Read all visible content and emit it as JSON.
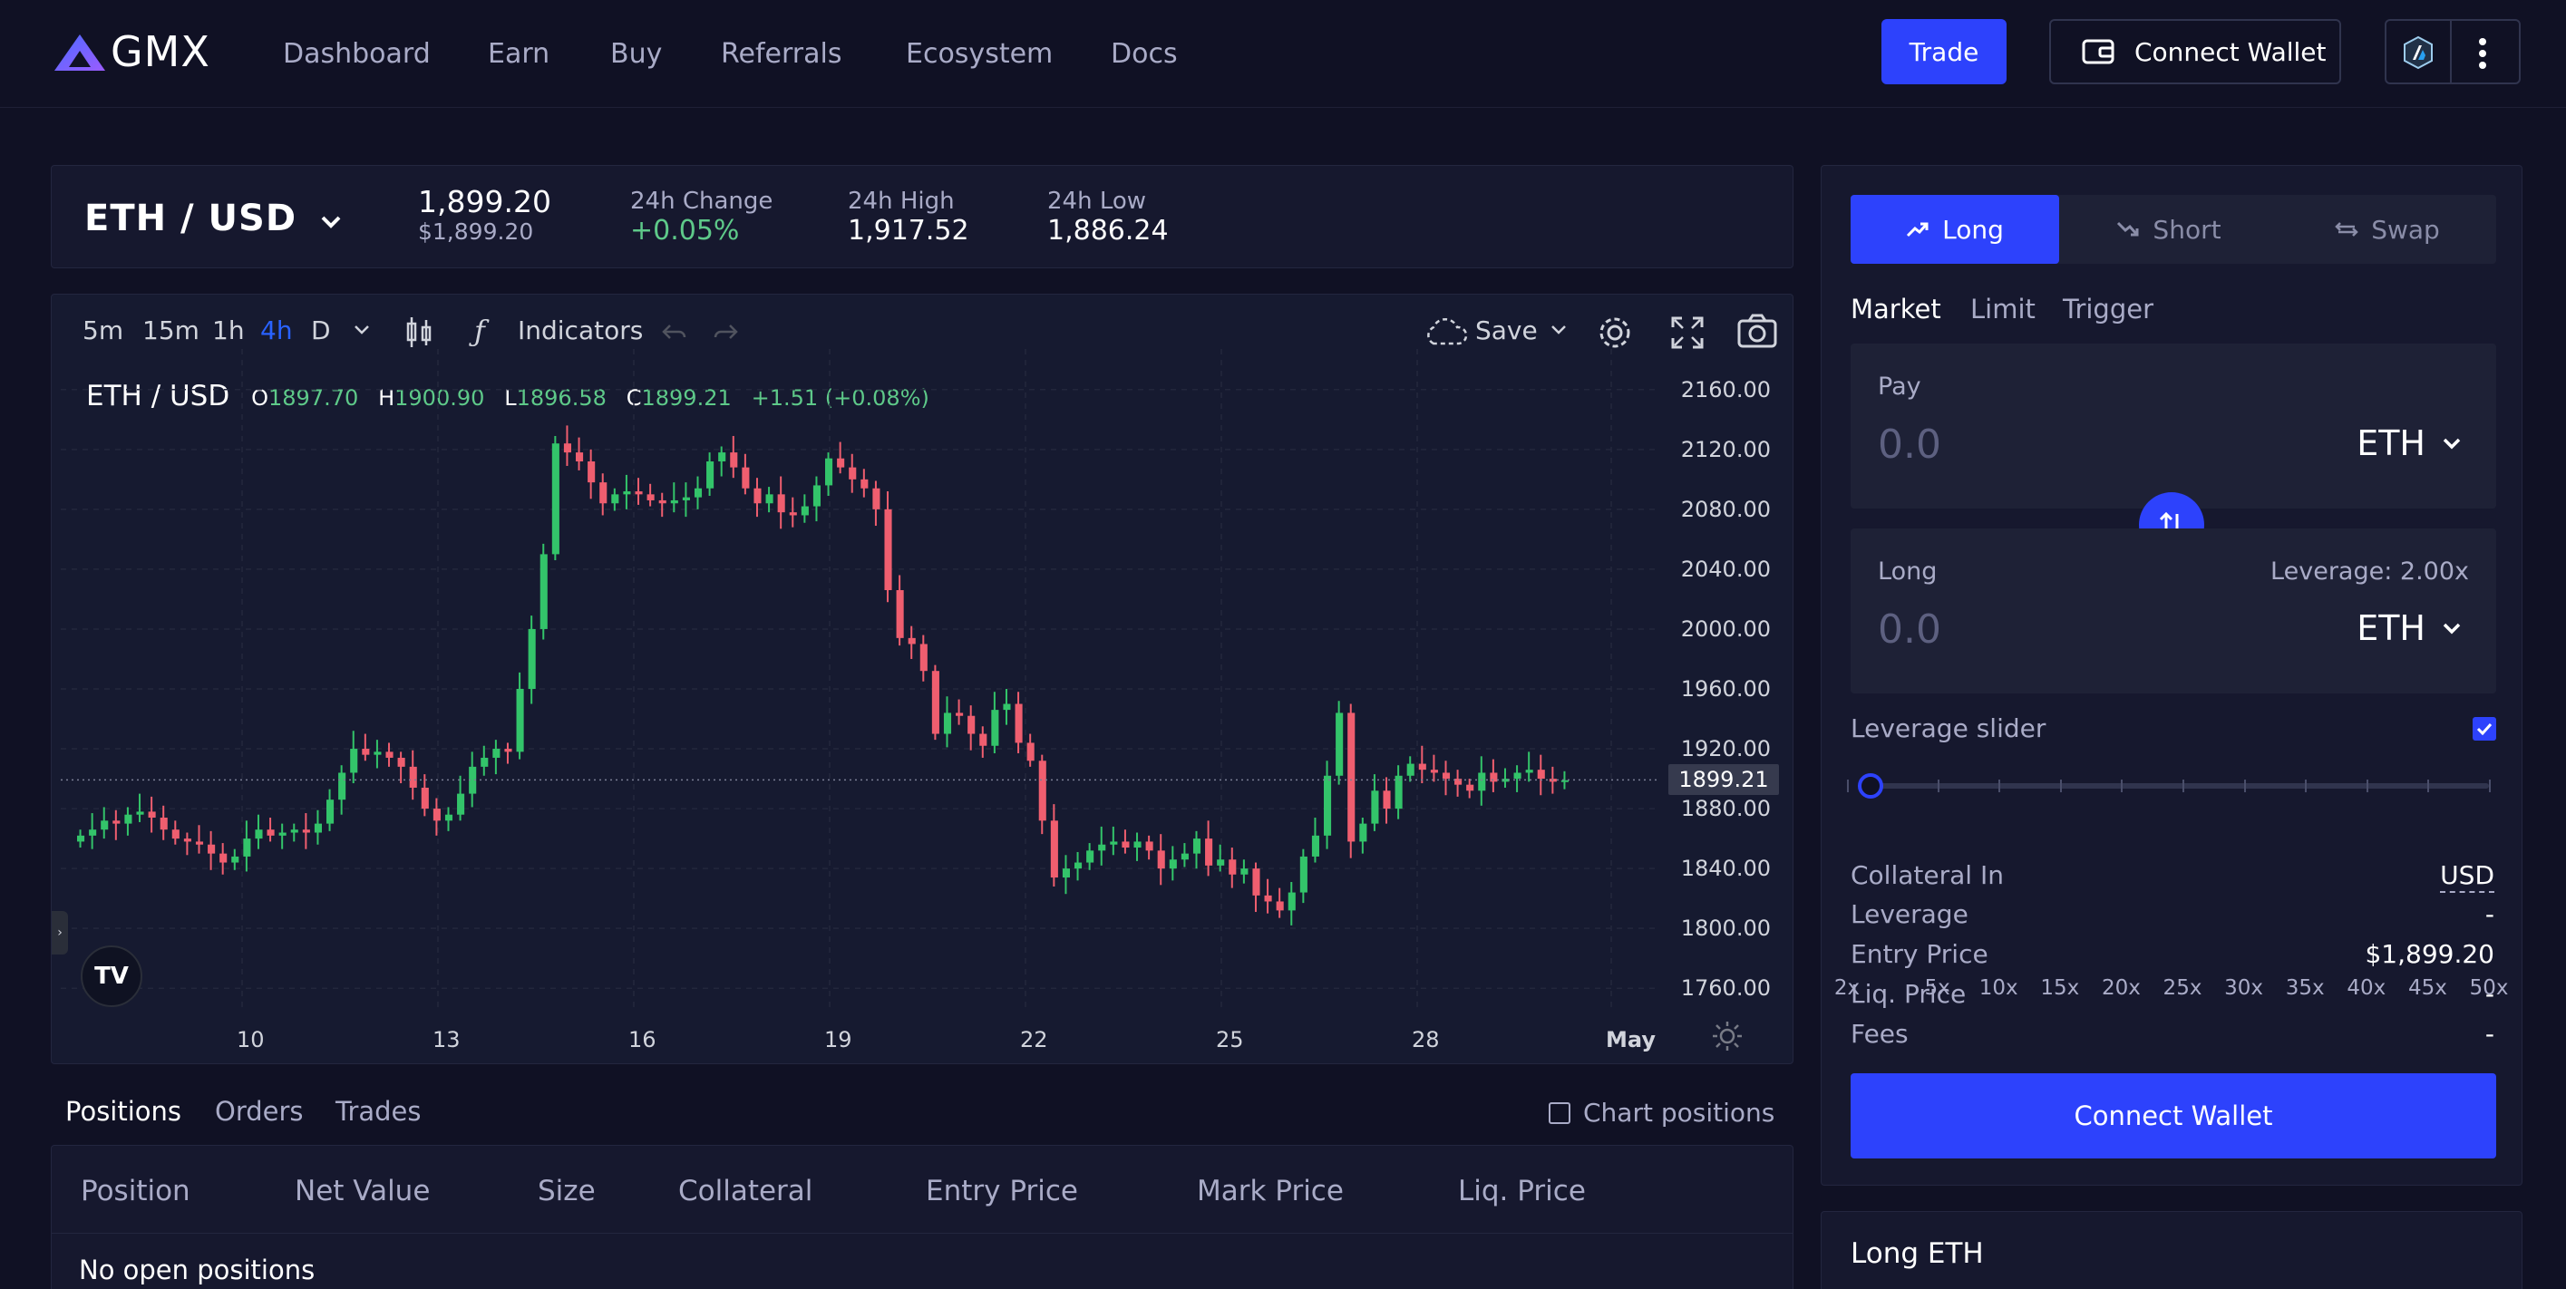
{
  "header": {
    "logo_text": "GMX",
    "nav": [
      "Dashboard",
      "Earn",
      "Buy",
      "Referrals",
      "Ecosystem",
      "Docs"
    ],
    "trade_label": "Trade",
    "connect_wallet_label": "Connect Wallet"
  },
  "ticker": {
    "pair": "ETH / USD",
    "price": "1,899.20",
    "price_usd": "$1,899.20",
    "change_label": "24h Change",
    "change_value": "+0.05%",
    "high_label": "24h High",
    "high_value": "1,917.52",
    "low_label": "24h Low",
    "low_value": "1,886.24"
  },
  "chart_toolbar": {
    "intervals": [
      "5m",
      "15m",
      "1h",
      "4h",
      "D"
    ],
    "active_interval": "4h",
    "indicators_label": "Indicators",
    "save_label": "Save"
  },
  "chart_legend": {
    "symbol": "ETH / USD",
    "o_label": "O",
    "o_value": "1897.70",
    "h_label": "H",
    "h_value": "1900.90",
    "l_label": "L",
    "l_value": "1896.58",
    "c_label": "C",
    "c_value": "1899.21",
    "change": "+1.51 (+0.08%)"
  },
  "chart_data": {
    "type": "candlestick",
    "symbol": "ETH / USD",
    "y_ticks": [
      "2160.00",
      "2120.00",
      "2080.00",
      "2040.00",
      "2000.00",
      "1960.00",
      "1920.00",
      "1880.00",
      "1840.00",
      "1800.00",
      "1760.00"
    ],
    "ylim": [
      1745,
      2175
    ],
    "x_ticks": [
      "10",
      "13",
      "16",
      "19",
      "22",
      "25",
      "28",
      "May"
    ],
    "last_price": "1899.21",
    "colors": {
      "up": "#26a69a",
      "up_bright": "#33c46a",
      "down": "#ef5e6f"
    },
    "close_series": [
      1862,
      1866,
      1872,
      1870,
      1876,
      1878,
      1874,
      1866,
      1860,
      1858,
      1856,
      1850,
      1844,
      1848,
      1860,
      1866,
      1862,
      1864,
      1866,
      1864,
      1870,
      1886,
      1904,
      1920,
      1916,
      1918,
      1914,
      1908,
      1894,
      1880,
      1872,
      1876,
      1890,
      1908,
      1914,
      1920,
      1918,
      1960,
      2000,
      2050,
      2124,
      2118,
      2112,
      2098,
      2084,
      2090,
      2092,
      2090,
      2086,
      2084,
      2086,
      2088,
      2094,
      2112,
      2118,
      2108,
      2094,
      2084,
      2090,
      2078,
      2076,
      2082,
      2096,
      2114,
      2108,
      2100,
      2094,
      2080,
      2026,
      1994,
      1990,
      1972,
      1930,
      1944,
      1942,
      1930,
      1922,
      1946,
      1950,
      1924,
      1912,
      1872,
      1834,
      1840,
      1844,
      1852,
      1856,
      1858,
      1854,
      1858,
      1852,
      1840,
      1846,
      1850,
      1860,
      1842,
      1846,
      1836,
      1840,
      1822,
      1818,
      1812,
      1824,
      1848,
      1862,
      1902,
      1944,
      1858,
      1870,
      1892,
      1880,
      1902,
      1910,
      1906,
      1904,
      1900,
      1896,
      1892,
      1904,
      1898,
      1900,
      1904,
      1906,
      1900,
      1898,
      1899
    ]
  },
  "positions": {
    "tabs": [
      "Positions",
      "Orders",
      "Trades"
    ],
    "chart_positions_label": "Chart positions",
    "columns": [
      "Position",
      "Net Value",
      "Size",
      "Collateral",
      "Entry Price",
      "Mark Price",
      "Liq. Price"
    ],
    "empty_text": "No open positions"
  },
  "order_panel": {
    "modes": [
      "Long",
      "Short",
      "Swap"
    ],
    "active_mode": "Long",
    "order_types": [
      "Market",
      "Limit",
      "Trigger"
    ],
    "pay_label": "Pay",
    "pay_amount": "0.0",
    "pay_token": "ETH",
    "long_label": "Long",
    "long_amount": "0.0",
    "long_token": "ETH",
    "leverage_display": "Leverage: 2.00x",
    "leverage_slider_label": "Leverage slider",
    "leverage_marks": [
      "2x",
      "5x",
      "10x",
      "15x",
      "20x",
      "25x",
      "30x",
      "35x",
      "40x",
      "45x",
      "50x"
    ],
    "leverage_value": 2,
    "info": [
      {
        "label": "Collateral In",
        "value": "USD"
      },
      {
        "label": "Leverage",
        "value": "-"
      },
      {
        "label": "Entry Price",
        "value": "$1,899.20"
      },
      {
        "label": "Liq. Price",
        "value": "-"
      },
      {
        "label": "Fees",
        "value": "-"
      }
    ],
    "connect_label": "Connect Wallet"
  },
  "long_eth": {
    "title": "Long ETH"
  },
  "colors": {
    "accent": "#2d42fc",
    "positive": "#5ec989",
    "background": "#101124",
    "panel": "#16182e"
  }
}
